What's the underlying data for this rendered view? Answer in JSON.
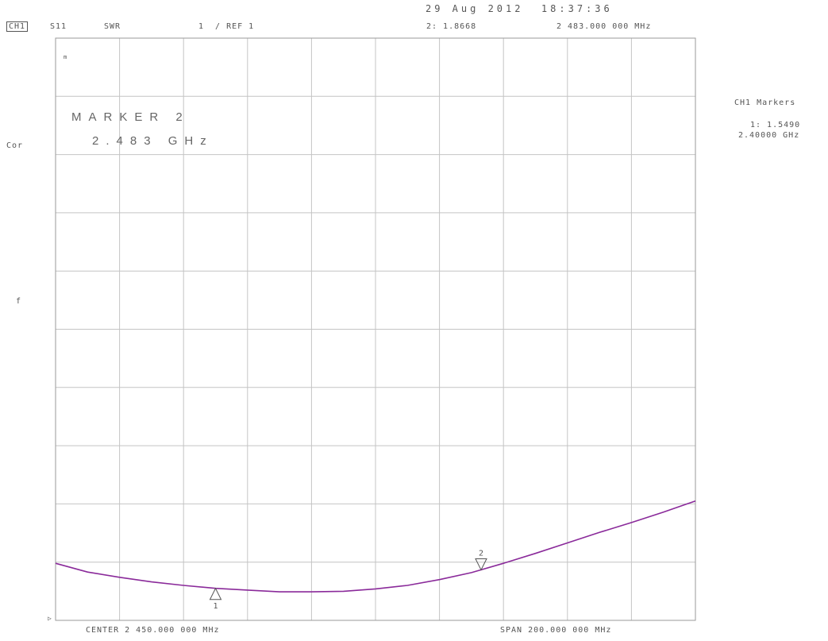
{
  "header": {
    "datetime": "29 Aug 2012  18:37:36",
    "channel": "CH1",
    "param": "S11",
    "format": "SWR",
    "scale": "1  / REF 1",
    "marker_readout": "2: 1.8668",
    "marker_freq": "2 483.000 000 MHz"
  },
  "left": {
    "cor": "Cor",
    "pen": "f",
    "ref_glyph": "▷"
  },
  "marker_box": {
    "title": "MARKER 2",
    "value": "2.483 GHz"
  },
  "side_panel": {
    "title": "CH1 Markers",
    "m1_value": "1: 1.5490",
    "m1_freq": "2.40000 GHz"
  },
  "footer": {
    "center": "CENTER 2 450.000 000 MHz",
    "span": "SPAN 200.000 000 MHz"
  },
  "colors": {
    "trace": "#8a2a9a",
    "grid": "#c4c4c4",
    "frame": "#9a9a9a",
    "text": "#555555"
  },
  "chart_data": {
    "type": "line",
    "title": "",
    "xlabel": "",
    "ylabel": "",
    "xlim": [
      2350,
      2550
    ],
    "ylim": [
      1,
      11
    ],
    "x_unit": "MHz",
    "grid": true,
    "series": [
      {
        "x": [
          2350,
          2360,
          2370,
          2380,
          2390,
          2400,
          2410,
          2420,
          2430,
          2440,
          2450,
          2460,
          2470,
          2480,
          2490,
          2500,
          2510,
          2520,
          2530,
          2540,
          2550
        ],
        "values": [
          1.98,
          1.83,
          1.74,
          1.66,
          1.6,
          1.55,
          1.52,
          1.49,
          1.49,
          1.5,
          1.54,
          1.6,
          1.7,
          1.82,
          1.98,
          2.15,
          2.33,
          2.51,
          2.68,
          2.86,
          3.05
        ]
      }
    ],
    "markers": [
      {
        "label": "1",
        "x": 2400,
        "y": 1.549,
        "style": "up"
      },
      {
        "label": "2",
        "x": 2483,
        "y": 1.8668,
        "style": "down"
      }
    ]
  }
}
